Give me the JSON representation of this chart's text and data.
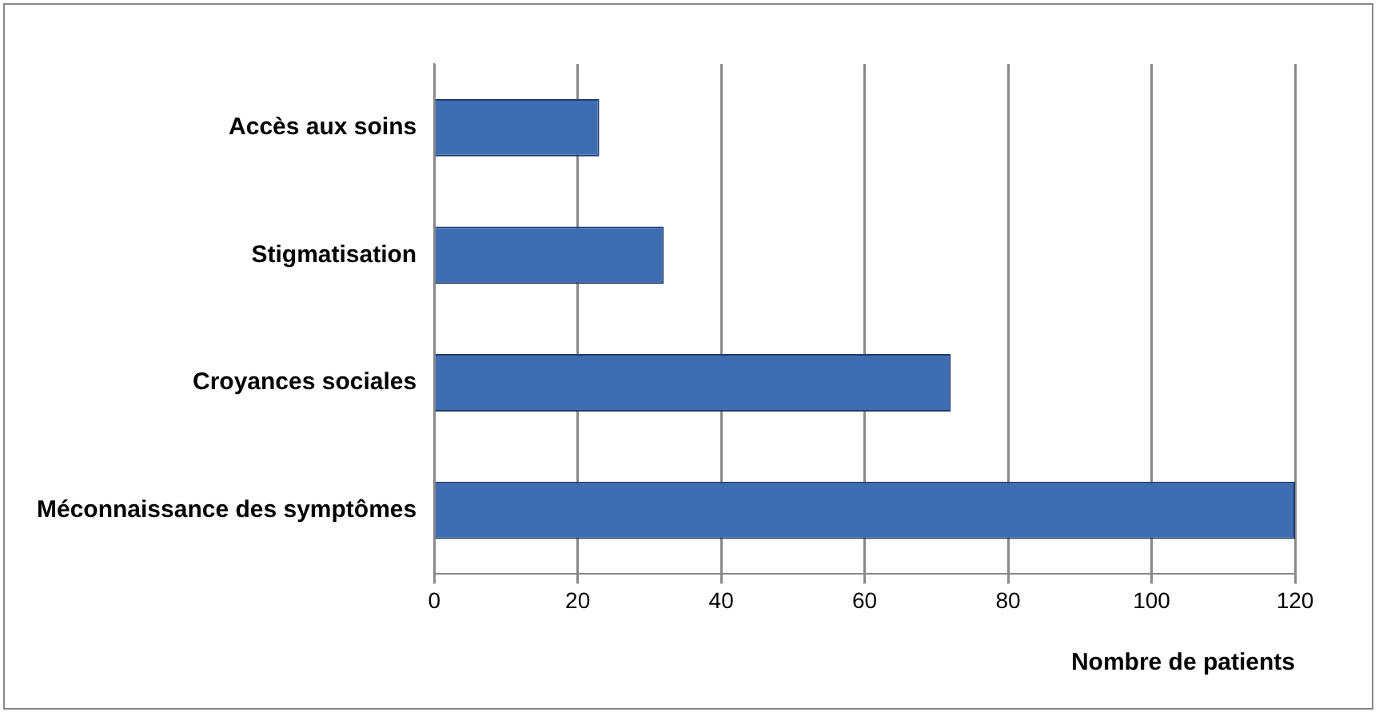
{
  "chart_data": {
    "type": "bar",
    "orientation": "horizontal",
    "xlabel": "Nombre de patients",
    "categories": [
      "Accès aux soins",
      "Stigmatisation",
      "Croyances sociales",
      "Méconnaissance des symptômes"
    ],
    "values": [
      23,
      32,
      72,
      120
    ],
    "color": "#3f6db3",
    "xlim": [
      0,
      120
    ],
    "xticks": [
      0,
      20,
      40,
      60,
      80,
      100,
      120
    ],
    "grid": "x",
    "legend": false
  }
}
